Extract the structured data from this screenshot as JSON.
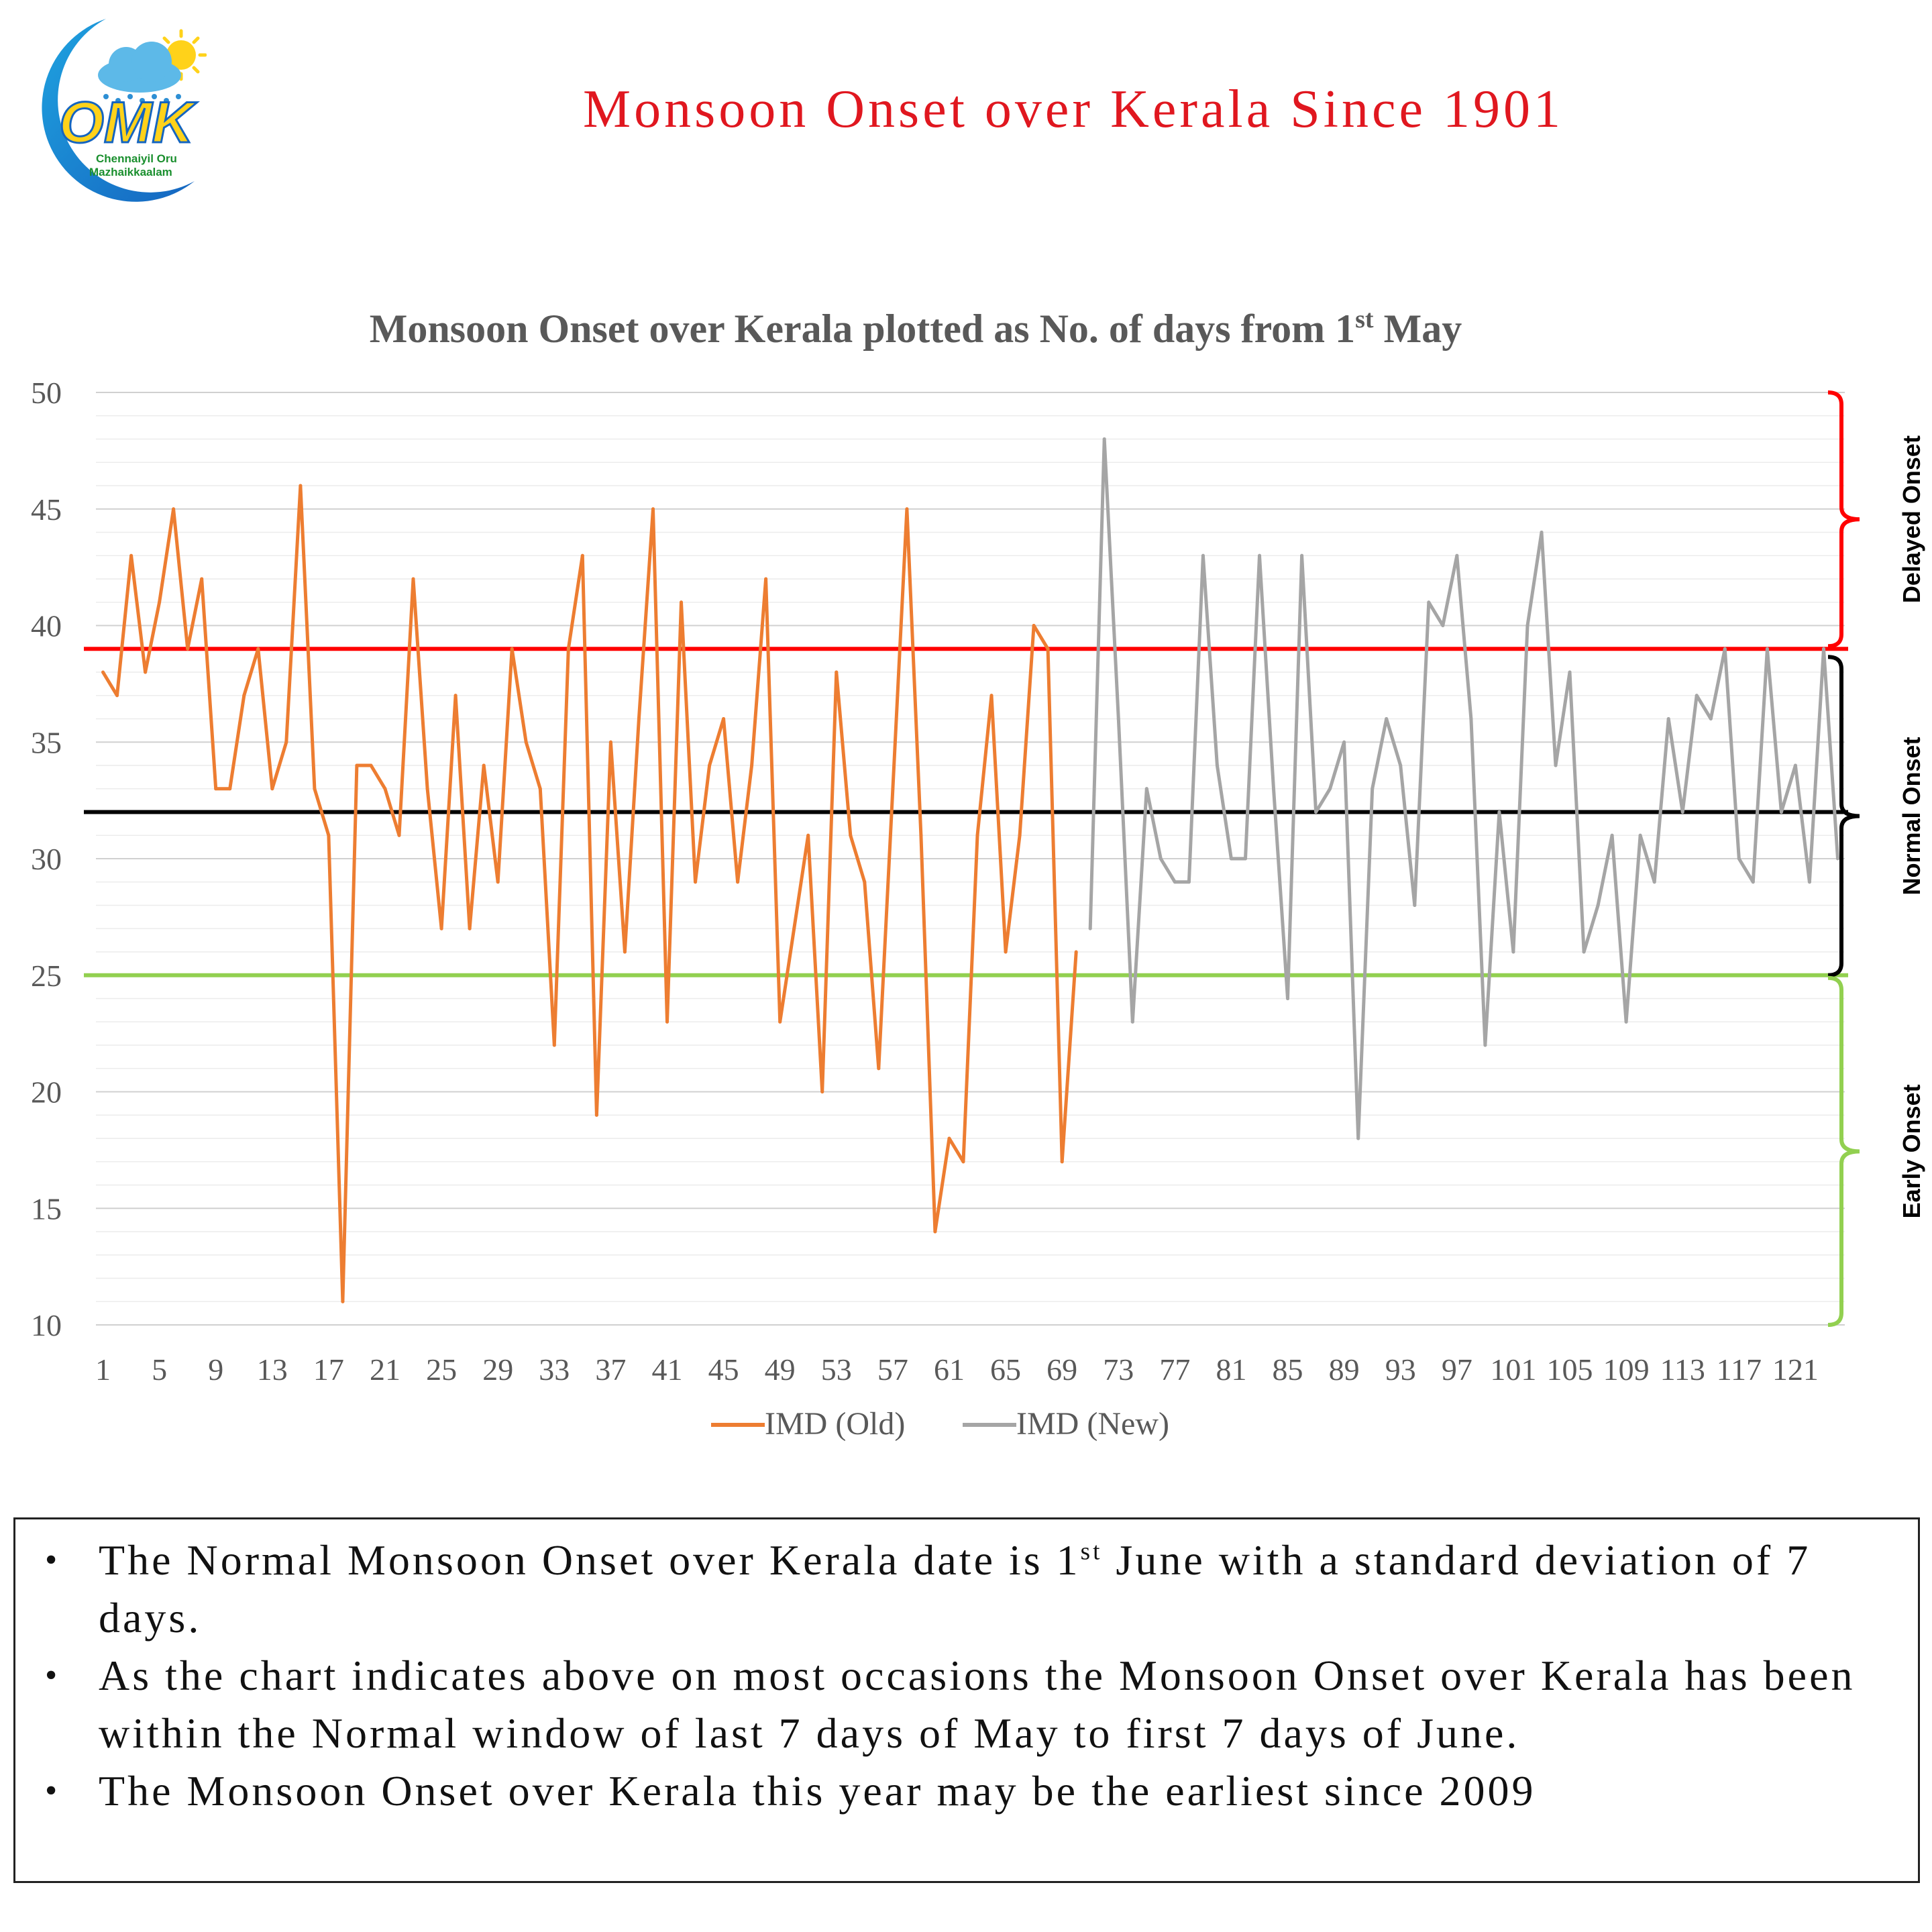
{
  "logo": {
    "letters": "OMK",
    "line1": "Chennaiyil Oru",
    "line2": "Mazhaikkaalam"
  },
  "page_title": {
    "text": "Monsoon Onset over Kerala Since 1901",
    "color": "#e0171f"
  },
  "chart_data": {
    "type": "line",
    "title_main": "Monsoon Onset over Kerala plotted as No. of days from 1",
    "title_sup": "st",
    "title_end": " May",
    "ylim": [
      10,
      50
    ],
    "yticks": [
      10,
      15,
      20,
      25,
      30,
      35,
      40,
      45,
      50
    ],
    "xticks": [
      "1",
      "5",
      "9",
      "13",
      "17",
      "21",
      "25",
      "29",
      "33",
      "37",
      "41",
      "45",
      "49",
      "53",
      "57",
      "61",
      "65",
      "69",
      "73",
      "77",
      "81",
      "85",
      "89",
      "93",
      "97",
      "101",
      "105",
      "109",
      "113",
      "117",
      "121"
    ],
    "x_count": 124,
    "series": [
      {
        "name": "IMD (Old)",
        "color": "#ed7d31",
        "start": 1,
        "values": [
          38,
          37,
          43,
          38,
          41,
          45,
          39,
          42,
          33,
          33,
          37,
          39,
          33,
          35,
          46,
          33,
          31,
          11,
          34,
          34,
          33,
          31,
          42,
          33,
          27,
          37,
          27,
          34,
          29,
          39,
          35,
          33,
          22,
          39,
          43,
          19,
          35,
          26,
          36,
          45,
          23,
          41,
          29,
          34,
          36,
          29,
          34,
          42,
          23,
          27,
          31,
          20,
          38,
          31,
          29,
          21,
          33,
          45,
          31,
          14,
          18,
          17,
          31,
          37,
          26,
          31,
          40,
          39,
          17,
          26
        ]
      },
      {
        "name": "IMD (New)",
        "color": "#a5a5a5",
        "start": 71,
        "values": [
          27,
          48,
          36,
          23,
          33,
          30,
          29,
          29,
          43,
          34,
          30,
          30,
          43,
          33,
          24,
          43,
          32,
          33,
          35,
          18,
          33,
          36,
          34,
          28,
          41,
          40,
          43,
          36,
          22,
          32,
          26,
          40,
          44,
          34,
          38,
          26,
          28,
          31,
          23,
          31,
          29,
          36,
          32,
          37,
          36,
          39,
          30,
          29,
          39,
          32,
          34,
          29,
          39,
          30
        ]
      }
    ],
    "reference_lines": [
      {
        "value": 39,
        "color": "#ff0000"
      },
      {
        "value": 32,
        "color": "#000000"
      },
      {
        "value": 25,
        "color": "#92d050"
      }
    ],
    "zones": [
      {
        "label": "Delayed Onset",
        "from": 39,
        "to": 50,
        "color": "#ff0000"
      },
      {
        "label": "Normal Onset",
        "from": 25,
        "to": 39,
        "color": "#000000"
      },
      {
        "label": "Early Onset",
        "from": 10,
        "to": 25,
        "color": "#92d050"
      }
    ],
    "legend_position": "bottom"
  },
  "notes": {
    "items": [
      {
        "text": "The Normal Monsoon Onset over Kerala date is 1",
        "sup": "st",
        "rest": " June with a standard deviation of 7 days."
      },
      {
        "text": "As the chart indicates above on most occasions the Monsoon Onset over Kerala has been within the Normal window of last 7 days of May to first 7 days of June.",
        "sup": "",
        "rest": ""
      },
      {
        "text": "The Monsoon Onset over Kerala this year may be the earliest since 2009",
        "sup": "",
        "rest": ""
      }
    ]
  }
}
